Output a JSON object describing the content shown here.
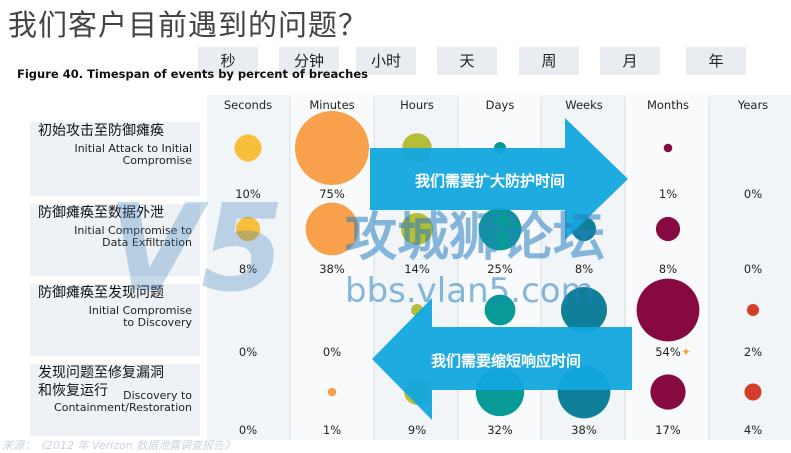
{
  "title": "我们客户目前遇到的问题？",
  "units": [
    "秒",
    "分钟",
    "小时",
    "天",
    "周",
    "月",
    "年"
  ],
  "figure_caption": "Figure 40. Timespan of events by percent of breaches",
  "arrows": {
    "top": "我们需要扩大防护时间",
    "bottom": "我们需要缩短响应时间"
  },
  "watermark": {
    "logo": "V5",
    "main": "攻城狮论坛",
    "url": "bbs.vlan5.com"
  },
  "source_note": "来源：《2012 年 Verizon 数据泄露调查报告》",
  "colors": {
    "Seconds": "#f6be3a",
    "Minutes": "#f8a04c",
    "Hours": "#b6bd39",
    "Days": "#079a96",
    "Weeks": "#0f7f9a",
    "Months": "#860a3f",
    "Years": "#d33e2a",
    "arrow": "#12a6de"
  },
  "chart_data": {
    "type": "table",
    "title": "Figure 40. Timespan of events by percent of breaches",
    "columns": [
      "Seconds",
      "Minutes",
      "Hours",
      "Days",
      "Weeks",
      "Months",
      "Years"
    ],
    "rows": [
      {
        "label_cn": "初始攻击至防御瘫痪",
        "label_en": [
          "Initial Attack to Initial",
          "Compromise"
        ],
        "values": [
          10,
          75,
          12,
          2,
          0,
          1,
          0
        ],
        "labels": [
          "10%",
          "75%",
          "",
          "",
          "",
          "1%",
          "0%"
        ]
      },
      {
        "label_cn": "防御瘫痪至数据外泄",
        "label_en": [
          "Initial Compromise to",
          "Data Exfiltration"
        ],
        "values": [
          8,
          38,
          14,
          25,
          8,
          8,
          0
        ],
        "labels": [
          "8%",
          "38%",
          "14%",
          "25%",
          "8%",
          "8%",
          "0%"
        ]
      },
      {
        "label_cn": "防御瘫痪至发现问题",
        "label_en": [
          "Initial Compromise",
          "to Discovery"
        ],
        "values": [
          0,
          0,
          2,
          13,
          29,
          54,
          2
        ],
        "labels": [
          "0%",
          "0%",
          "",
          "",
          "",
          "54%",
          "2%"
        ]
      },
      {
        "label_cn": "发现问题至修复漏洞",
        "label_cn2": "和恢复运行",
        "label_en": [
          "Discovery to",
          "Containment/Restoration"
        ],
        "values": [
          0,
          1,
          9,
          32,
          38,
          17,
          4
        ],
        "labels": [
          "0%",
          "1%",
          "9%",
          "32%",
          "38%",
          "17%",
          "4%"
        ]
      }
    ]
  }
}
